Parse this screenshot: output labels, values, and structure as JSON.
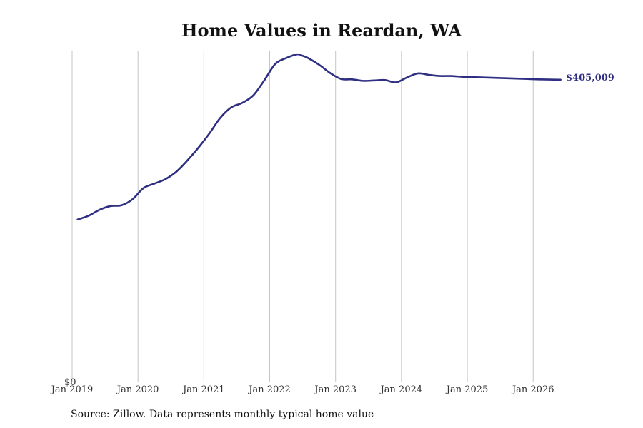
{
  "chart_data": {
    "type": "line",
    "title": "Home Values in Reardan, WA",
    "xlabel": "",
    "ylabel": "",
    "x_tick_labels": [
      "Jan 2019",
      "Jan 2020",
      "Jan 2021",
      "Jan 2022",
      "Jan 2023",
      "Jan 2024",
      "Jan 2025",
      "Jan 2026"
    ],
    "y_tick_labels": [
      "$0"
    ],
    "ylim": [
      0,
      443000
    ],
    "xlim": [
      "2019-01",
      "2026-08"
    ],
    "grid": "vertical",
    "line_color": "#2e2e82",
    "end_label": "$405,009",
    "series": [
      {
        "x": [
          "2019-02",
          "2019-04",
          "2019-06",
          "2019-08",
          "2019-10",
          "2019-12",
          "2020-02",
          "2020-04",
          "2020-06",
          "2020-08",
          "2020-10",
          "2020-12",
          "2021-02",
          "2021-04",
          "2021-06",
          "2021-08",
          "2021-10",
          "2021-12",
          "2022-02",
          "2022-04",
          "2022-06",
          "2022-07",
          "2022-08",
          "2022-10",
          "2022-12",
          "2023-02",
          "2023-04",
          "2023-06",
          "2023-08",
          "2023-10",
          "2023-12",
          "2024-02",
          "2024-04",
          "2024-06",
          "2024-08",
          "2024-10",
          "2024-12",
          "2025-02",
          "2025-04",
          "2025-06",
          "2025-08",
          "2025-10",
          "2025-12",
          "2026-02",
          "2026-04",
          "2026-06"
        ],
        "values": [
          218000,
          223000,
          231000,
          236000,
          237000,
          245000,
          260000,
          266000,
          272000,
          282000,
          297000,
          314000,
          333000,
          354000,
          368000,
          374000,
          384000,
          404000,
          426000,
          434000,
          439000,
          437000,
          434000,
          425000,
          414000,
          406000,
          405500,
          403500,
          404000,
          404500,
          401500,
          408000,
          413500,
          411500,
          410000,
          410000,
          409000,
          408500,
          408000,
          407500,
          407000,
          406500,
          406000,
          405500,
          405200,
          405009
        ]
      }
    ]
  },
  "source_note": "Source: Zillow. Data represents monthly typical home value"
}
